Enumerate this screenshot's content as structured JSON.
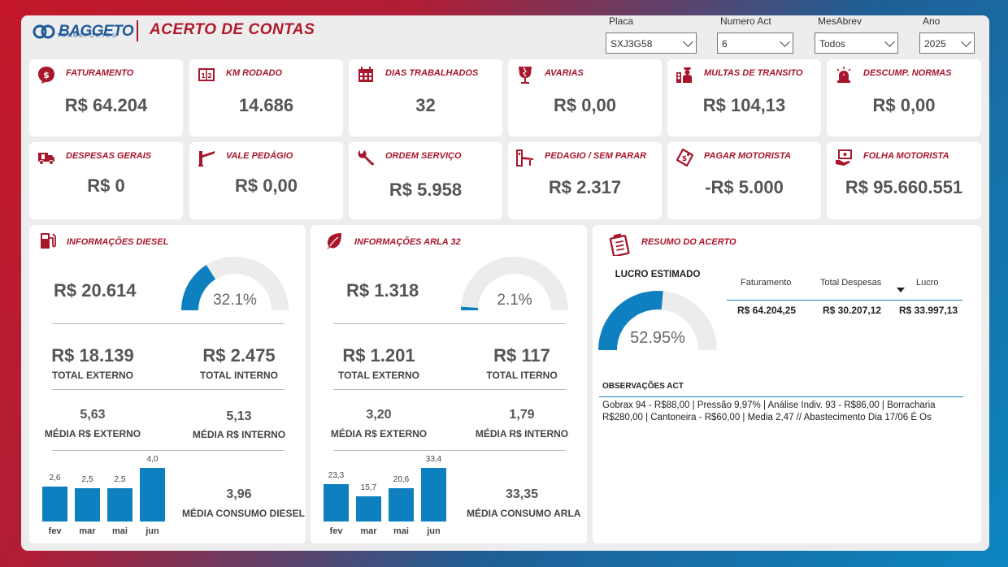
{
  "header": {
    "brand": "BAGGETO",
    "brand_sub": "TRANSPORTES",
    "title": "ACERTO DE CONTAS"
  },
  "filters": [
    {
      "label": "Placa",
      "value": "SXJ3G58"
    },
    {
      "label": "Numero Act",
      "value": "6"
    },
    {
      "label": "MesAbrev",
      "value": "Todos"
    },
    {
      "label": "Ano",
      "value": "2025"
    }
  ],
  "kpis": [
    {
      "label": "FATURAMENTO",
      "value": "R$ 64.204",
      "icon": "dollar-icon"
    },
    {
      "label": "KM RODADO",
      "value": "14.686",
      "icon": "odometer-icon"
    },
    {
      "label": "DIAS TRABALHADOS",
      "value": "32",
      "icon": "calendar-icon"
    },
    {
      "label": "AVARIAS",
      "value": "R$ 0,00",
      "icon": "broken-glass-icon"
    },
    {
      "label": "MULTAS DE TRANSITO",
      "value": "R$ 104,13",
      "icon": "traffic-officer-icon"
    },
    {
      "label": "DESCUMP. NORMAS",
      "value": "R$ 0,00",
      "icon": "siren-icon"
    },
    {
      "label": "DESPESAS GERAIS",
      "value": "R$ 0",
      "icon": "truck-icon"
    },
    {
      "label": "VALE PEDÁGIO",
      "value": "R$ 0,00",
      "icon": "toll-barrier-icon"
    },
    {
      "label": "ORDEM SERVIÇO",
      "value": "R$ 5.958",
      "icon": "wrench-icon"
    },
    {
      "label": "PEDAGIO / SEM PARAR",
      "value": "R$ 2.317",
      "icon": "toll-gate-icon"
    },
    {
      "label": "PAGAR MOTORISTA",
      "value": "-R$ 5.000",
      "icon": "price-tag-icon"
    },
    {
      "label": "FOLHA MOTORISTA",
      "value": "R$ 95.660.551",
      "icon": "payroll-icon"
    }
  ],
  "diesel": {
    "title": "INFORMAÇÕES DIESEL",
    "total": "R$ 20.614",
    "gauge_pct": 32.1,
    "gauge_label": "32.1%",
    "externo": "R$ 18.139",
    "externo_label": "TOTAL EXTERNO",
    "interno": "R$ 2.475",
    "interno_label": "TOTAL INTERNO",
    "media_ext": "5,63",
    "media_ext_label": "MÉDIA R$ EXTERNO",
    "media_int": "5,13",
    "media_int_label": "MÉDIA R$ INTERNO",
    "consumo": "3,96",
    "consumo_label": "MÉDIA CONSUMO DIESEL"
  },
  "arla": {
    "title": "INFORMAÇÕES ARLA 32",
    "total": "R$ 1.318",
    "gauge_pct": 2.1,
    "gauge_label": "2.1%",
    "externo": "R$ 1.201",
    "externo_label": "TOTAL EXTERNO",
    "interno": "R$ 117",
    "interno_label": "TOTAL ITERNO",
    "media_ext": "3,20",
    "media_ext_label": "MÉDIA R$ EXTERNO",
    "media_int": "1,79",
    "media_int_label": "MÉDIA R$ INTERNO",
    "consumo": "33,35",
    "consumo_label": "MÉDIA CONSUMO ARLA"
  },
  "chart_data": [
    {
      "type": "bar",
      "categories": [
        "fev",
        "mar",
        "mai",
        "jun"
      ],
      "values": [
        2.6,
        2.5,
        2.5,
        4.0
      ],
      "labels": [
        "2,6",
        "2,5",
        "2,5",
        "4,0"
      ],
      "ylim": [
        0,
        4.0
      ]
    },
    {
      "type": "bar",
      "categories": [
        "fev",
        "mar",
        "mai",
        "jun"
      ],
      "values": [
        23.3,
        15.7,
        20.6,
        33.4
      ],
      "labels": [
        "23,3",
        "15,7",
        "20,6",
        "33,4"
      ],
      "ylim": [
        0,
        33.4
      ]
    }
  ],
  "resumo": {
    "title": "RESUMO DO ACERTO",
    "lucro_title": "LUCRO ESTIMADO",
    "gauge_pct": 52.95,
    "gauge_label": "52.95%",
    "columns": [
      "Faturamento",
      "Total Despesas",
      "Lucro"
    ],
    "values": [
      "R$ 64.204,25",
      "R$ 30.207,12",
      "R$ 33.997,13"
    ],
    "obs_title": "OBSERVAÇÕES ACT",
    "obs_text": "Gobrax 94 - R$88,00 | Pressão 9,97% | Análise Indiv. 93 - R$86,00 | Borracharia R$280,00 | Cantoneira - R$60,00 | Media 2,47 // Abastecimento Dia 17/06 É Os"
  },
  "colors": {
    "accent_red": "#a8162b",
    "accent_blue": "#0e80bf",
    "gauge_bg": "#ececec"
  }
}
